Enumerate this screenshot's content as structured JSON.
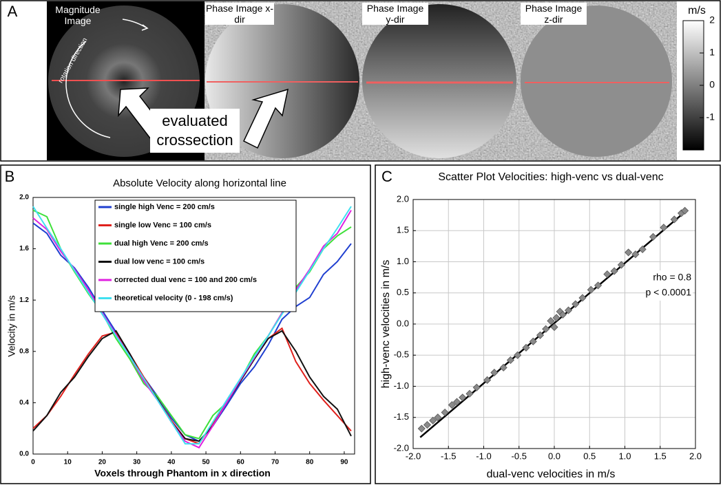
{
  "panel_a": {
    "label": "A",
    "images": [
      "Magnitude Image",
      "Phase Image x-dir",
      "Phase Image y-dir",
      "Phase Image z-dir"
    ],
    "rotation_label": "rotation direction",
    "callout": "evaluated crossection",
    "colorbar": {
      "unit": "m/s",
      "ylim": [
        -2,
        2
      ],
      "yticks": [
        -1,
        0,
        1,
        2
      ]
    }
  },
  "chart_data": [
    {
      "type": "line",
      "panel_label": "B",
      "title": "Absolute Velocity along horizontal line",
      "x_label": "Voxels through Phantom in x direction",
      "y_label": "Velocity in m/s",
      "x": [
        0,
        4,
        8,
        12,
        16,
        20,
        24,
        28,
        32,
        36,
        40,
        44,
        48,
        52,
        56,
        60,
        64,
        68,
        72,
        76,
        80,
        84,
        88,
        92
      ],
      "xlim": [
        0,
        93
      ],
      "xticks": [
        0,
        10,
        20,
        30,
        40,
        50,
        60,
        70,
        80,
        90
      ],
      "ylim": [
        0,
        2
      ],
      "yticks": [
        {
          "value": 0,
          "label": "0.0"
        },
        0.4,
        0.8,
        1.2,
        1.6,
        {
          "value": 2,
          "label": "2.0"
        }
      ],
      "series": [
        {
          "name": "single high Venc = 200 cm/s",
          "color": "#1f3fd0",
          "values": [
            1.8,
            1.72,
            1.55,
            1.45,
            1.3,
            1.12,
            0.95,
            0.78,
            0.6,
            0.45,
            0.28,
            0.15,
            0.1,
            0.22,
            0.38,
            0.55,
            0.68,
            0.85,
            1.05,
            1.15,
            1.22,
            1.4,
            1.5,
            1.64
          ]
        },
        {
          "name": "single low Venc = 100 cm/s",
          "color": "#e0201c",
          "values": [
            0.2,
            0.3,
            0.45,
            0.62,
            0.78,
            0.92,
            0.95,
            0.78,
            0.6,
            0.43,
            0.26,
            0.12,
            0.08,
            0.24,
            0.4,
            0.57,
            0.74,
            0.9,
            0.98,
            0.72,
            0.55,
            0.42,
            0.3,
            0.18
          ]
        },
        {
          "name": "dual high Venc = 200 cm/s",
          "color": "#3ee03a",
          "values": [
            1.9,
            1.85,
            1.6,
            1.42,
            1.25,
            1.1,
            0.9,
            0.74,
            0.55,
            0.45,
            0.3,
            0.15,
            0.12,
            0.3,
            0.4,
            0.58,
            0.78,
            0.92,
            1.1,
            1.3,
            1.42,
            1.6,
            1.7,
            1.77
          ]
        },
        {
          "name": "dual low venc = 100 cm/s",
          "color": "#111111",
          "values": [
            0.18,
            0.3,
            0.48,
            0.6,
            0.76,
            0.9,
            0.96,
            0.78,
            0.58,
            0.43,
            0.25,
            0.12,
            0.1,
            0.22,
            0.4,
            0.57,
            0.74,
            0.9,
            0.96,
            0.8,
            0.6,
            0.45,
            0.35,
            0.14
          ]
        },
        {
          "name": "corrected dual venc = 100 and 200 cm/s",
          "color": "#e020e0",
          "values": [
            1.84,
            1.75,
            1.58,
            1.44,
            1.28,
            1.1,
            0.93,
            0.76,
            0.57,
            0.42,
            0.25,
            0.1,
            0.05,
            0.22,
            0.4,
            0.58,
            0.75,
            0.92,
            1.1,
            1.28,
            1.44,
            1.62,
            1.72,
            1.9
          ]
        },
        {
          "name": "theoretical velocity (0 - 198 cm/s)",
          "color": "#40e0f0",
          "values": [
            1.93,
            1.76,
            1.6,
            1.43,
            1.26,
            1.09,
            0.92,
            0.76,
            0.59,
            0.42,
            0.25,
            0.08,
            0.08,
            0.25,
            0.42,
            0.59,
            0.76,
            0.92,
            1.09,
            1.26,
            1.43,
            1.6,
            1.76,
            1.93
          ]
        }
      ]
    },
    {
      "type": "scatter",
      "panel_label": "C",
      "title": "Scatter Plot Velocities: high-venc vs dual-venc",
      "x_label": "dual-venc velocities in m/s",
      "y_label": "high-venc velocities in m/s",
      "annotations": [
        "rho = 0.8",
        "p < 0.0001"
      ],
      "xlim": [
        -2,
        2
      ],
      "xticks": [
        {
          "value": -2,
          "label": "-2.0"
        },
        -1.5,
        {
          "value": -1,
          "label": "-1.0"
        },
        -0.5,
        {
          "value": 0,
          "label": "0.0"
        },
        0.5,
        {
          "value": 1,
          "label": "1.0"
        },
        1.5,
        {
          "value": 2,
          "label": "2.0"
        }
      ],
      "ylim": [
        -2,
        2
      ],
      "yticks": [
        {
          "value": -2,
          "label": "-2.0"
        },
        -1.5,
        {
          "value": -1,
          "label": "-1.0"
        },
        -0.5,
        {
          "value": 0,
          "label": "0.0"
        },
        0.5,
        {
          "value": 1,
          "label": "1.0"
        },
        1.5,
        {
          "value": 2,
          "label": "2.0"
        }
      ],
      "grid": true,
      "points": {
        "color": "#8a8a8a",
        "x": [
          -1.88,
          -1.8,
          -1.72,
          -1.65,
          -1.55,
          -1.45,
          -1.38,
          -1.3,
          -1.2,
          -1.1,
          -0.95,
          -0.85,
          -0.72,
          -0.62,
          -0.52,
          -0.4,
          -0.3,
          -0.2,
          -0.12,
          -0.05,
          0.0,
          0.03,
          0.08,
          0.12,
          0.2,
          0.3,
          0.4,
          0.52,
          0.62,
          0.75,
          0.85,
          0.95,
          1.05,
          1.15,
          1.25,
          1.4,
          1.55,
          1.7,
          1.8,
          1.85
        ],
        "y": [
          -1.68,
          -1.62,
          -1.55,
          -1.5,
          -1.42,
          -1.3,
          -1.25,
          -1.18,
          -1.12,
          -1.02,
          -0.9,
          -0.78,
          -0.7,
          -0.58,
          -0.5,
          -0.38,
          -0.28,
          -0.18,
          -0.08,
          0.05,
          -0.05,
          0.1,
          0.2,
          0.15,
          0.22,
          0.32,
          0.42,
          0.55,
          0.62,
          0.8,
          0.85,
          0.95,
          1.15,
          1.12,
          1.2,
          1.4,
          1.55,
          1.68,
          1.78,
          1.82
        ]
      },
      "fit_line": {
        "color": "#000000",
        "x": [
          -1.9,
          1.85
        ],
        "y": [
          -1.82,
          1.8
        ]
      }
    }
  ]
}
